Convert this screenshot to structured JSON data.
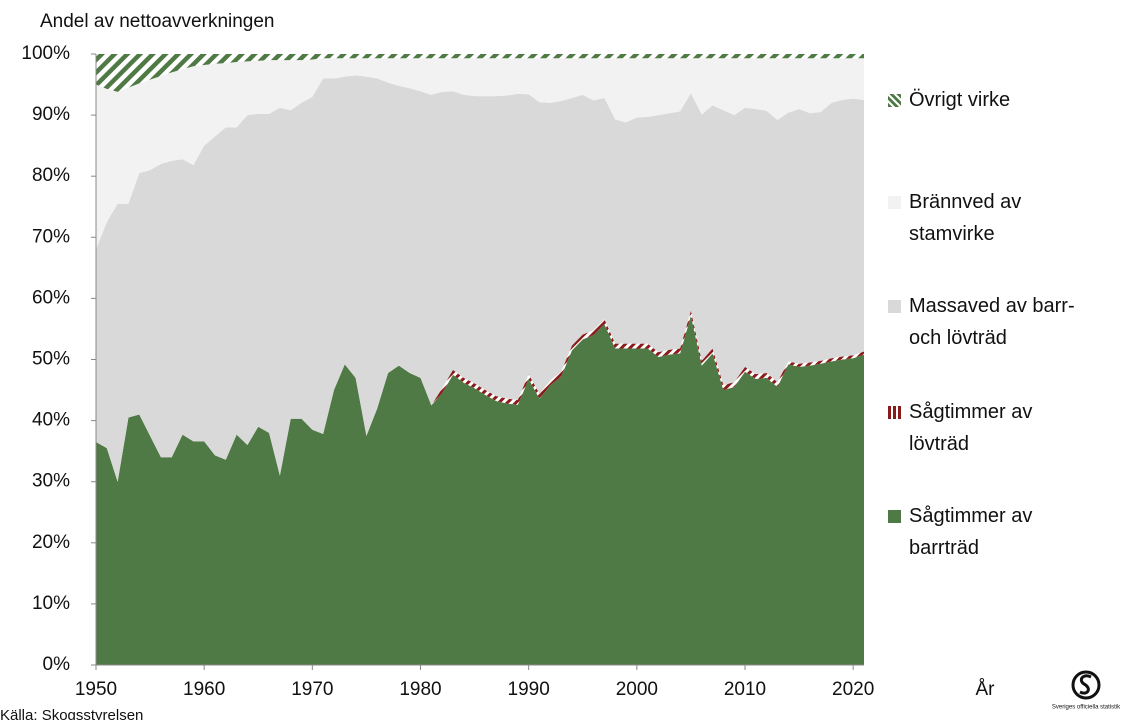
{
  "chart_data": {
    "type": "stacked_area",
    "title": "Andel av nettoavverkningen",
    "xlabel": "År",
    "source": "Källa: Skogsstyrelsen",
    "logo_text": "Sveriges officiella statistik",
    "x": [
      1950,
      1951,
      1952,
      1953,
      1954,
      1955,
      1956,
      1957,
      1958,
      1959,
      1960,
      1961,
      1962,
      1963,
      1964,
      1965,
      1966,
      1967,
      1968,
      1969,
      1970,
      1971,
      1972,
      1973,
      1974,
      1975,
      1976,
      1977,
      1978,
      1979,
      1980,
      1981,
      1982,
      1983,
      1984,
      1985,
      1986,
      1987,
      1988,
      1989,
      1990,
      1991,
      1992,
      1993,
      1994,
      1995,
      1996,
      1997,
      1998,
      1999,
      2000,
      2001,
      2002,
      2003,
      2004,
      2005,
      2006,
      2007,
      2008,
      2009,
      2010,
      2011,
      2012,
      2013,
      2014,
      2015,
      2016,
      2017,
      2018,
      2019,
      2020,
      2021
    ],
    "xlim": [
      1950,
      2021
    ],
    "xticks": [
      1950,
      1960,
      1970,
      1980,
      1990,
      2000,
      2010,
      2020
    ],
    "ylim": [
      0,
      100
    ],
    "yticks": [
      {
        "value": 0,
        "label": "0%"
      },
      {
        "value": 10,
        "label": "10%"
      },
      {
        "value": 20,
        "label": "20%"
      },
      {
        "value": 30,
        "label": "30%"
      },
      {
        "value": 40,
        "label": "40%"
      },
      {
        "value": 50,
        "label": "50%"
      },
      {
        "value": 60,
        "label": "60%"
      },
      {
        "value": 70,
        "label": "70%"
      },
      {
        "value": 80,
        "label": "80%"
      },
      {
        "value": 90,
        "label": "90%"
      },
      {
        "value": 100,
        "label": "100%"
      }
    ],
    "legend": "right",
    "series": [
      {
        "name": "Sågtimmer av barrträd",
        "color": "#507a45",
        "values": [
          36.5,
          35.5,
          30,
          40.5,
          41,
          37.5,
          34,
          34,
          37.7,
          36.6,
          36.6,
          34.3,
          33.6,
          37.7,
          36,
          39,
          38,
          31,
          40.3,
          40.3,
          38.5,
          37.8,
          45,
          49.2,
          47,
          37.5,
          42,
          47.8,
          49,
          47.8,
          47,
          42.5,
          44.5,
          47.5,
          46.2,
          45.3,
          44.2,
          43.2,
          42.8,
          42.6,
          46.8,
          43.6,
          45.8,
          47.2,
          51.5,
          53.3,
          54,
          55.8,
          51.8,
          51.8,
          51.8,
          51.8,
          50.4,
          50.8,
          51,
          57.2,
          49,
          51,
          45,
          45.5,
          48,
          46.8,
          47,
          45.5,
          49.2,
          48.8,
          49,
          49.3,
          49.7,
          50,
          50.2,
          50.8
        ]
      },
      {
        "name": "Sågtimmer av lövträd",
        "color": "#8b1a1a",
        "values": [
          0,
          0,
          0,
          0,
          0,
          0,
          0,
          0,
          0,
          0,
          0,
          0,
          0,
          0,
          0,
          0,
          0,
          0,
          0,
          0,
          0,
          0,
          0,
          0,
          0,
          0,
          0,
          0,
          0,
          0,
          0,
          0,
          0.8,
          0.8,
          0.8,
          0.8,
          0.8,
          0.8,
          0.8,
          0.8,
          0.8,
          0.8,
          0.8,
          0.8,
          0.8,
          0.8,
          0.8,
          0.8,
          0.8,
          0.8,
          0.8,
          0.8,
          0.8,
          0.8,
          0.8,
          0.8,
          0.8,
          0.8,
          0.8,
          0.8,
          0.8,
          0.8,
          0.8,
          0.8,
          0.5,
          0.5,
          0.5,
          0.5,
          0.5,
          0.5,
          0.5,
          0.5
        ]
      },
      {
        "name": "Massaved av barr- och lövträd",
        "color": "#d9d9d9",
        "values": [
          31.5,
          37,
          45.5,
          35,
          39.5,
          43.5,
          48,
          48.5,
          45.1,
          45.2,
          48.4,
          52.2,
          54.4,
          50.3,
          54,
          51.2,
          52.2,
          60.2,
          50.5,
          51.7,
          54.5,
          58.2,
          51,
          47.1,
          49.5,
          58.8,
          54,
          47.5,
          45.8,
          46.6,
          46.9,
          50.8,
          48.5,
          45.6,
          46.3,
          47,
          48.1,
          49.1,
          49.6,
          50.1,
          45.8,
          47.7,
          45.4,
          44.3,
          40.5,
          39.2,
          37.6,
          36.2,
          36.7,
          36.2,
          37,
          37.1,
          38.8,
          38.7,
          38.8,
          35.6,
          40.3,
          39.8,
          45,
          43.7,
          42.4,
          43.4,
          42.9,
          42.9,
          40.7,
          41.7,
          40.8,
          40.7,
          41.8,
          42,
          42,
          41.2
        ]
      },
      {
        "name": "Brännved av stamvirke",
        "color": "#f2f2f2",
        "values": [
          27,
          21.8,
          18.3,
          19,
          14.7,
          14.8,
          14.4,
          14.5,
          14.7,
          16.2,
          13.2,
          11.9,
          10.5,
          10.7,
          8.8,
          8.7,
          8.8,
          7.8,
          8.2,
          7,
          6.1,
          3.3,
          3.3,
          3,
          2.8,
          3,
          3.3,
          4,
          4.5,
          4.9,
          5.4,
          6,
          5.5,
          5.4,
          6,
          6.2,
          6.2,
          6.2,
          6.1,
          5.8,
          5.9,
          7.2,
          7.3,
          7,
          6.5,
          6,
          6.9,
          6.5,
          10,
          10.5,
          9.7,
          9.6,
          9.3,
          9,
          8.7,
          5.7,
          9.2,
          7.7,
          8.5,
          9.3,
          8.1,
          8.3,
          8.6,
          10.1,
          8.9,
          8.3,
          9,
          8.8,
          7.3,
          6.8,
          6.6,
          6.8
        ]
      },
      {
        "name": "Övrigt virke",
        "color": "#507a45",
        "values": [
          5,
          5.7,
          6.2,
          5.5,
          4.8,
          4.2,
          3.6,
          3,
          2.5,
          2,
          1.8,
          1.6,
          1.5,
          1.3,
          1.2,
          1.1,
          1,
          1,
          1,
          1,
          0.9,
          0.7,
          0.7,
          0.7,
          0.7,
          0.7,
          0.7,
          0.7,
          0.7,
          0.7,
          0.7,
          0.7,
          0.7,
          0.7,
          0.7,
          0.7,
          0.7,
          0.7,
          0.7,
          0.7,
          0.7,
          0.7,
          0.7,
          0.7,
          0.7,
          0.7,
          0.7,
          0.7,
          0.7,
          0.7,
          0.7,
          0.7,
          0.7,
          0.7,
          0.7,
          0.7,
          0.7,
          0.7,
          0.7,
          0.7,
          0.7,
          0.7,
          0.7,
          0.7,
          0.7,
          0.7,
          0.7,
          0.7,
          0.7,
          0.7,
          0.7,
          0.7
        ]
      }
    ]
  }
}
